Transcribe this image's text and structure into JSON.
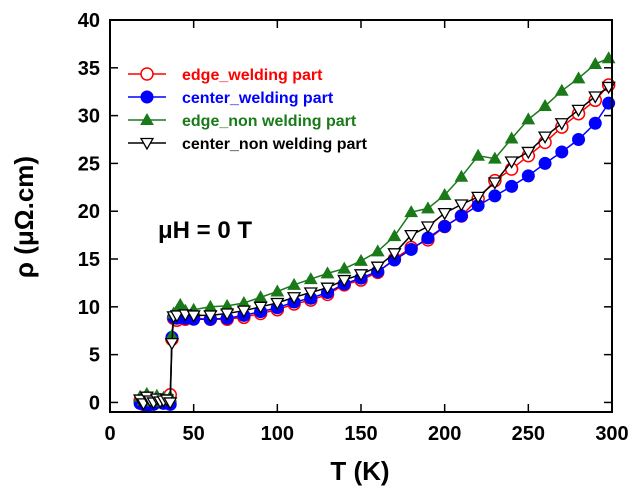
{
  "chart_data": {
    "type": "scatter",
    "xlabel": "T (K)",
    "ylabel": "ρ (μΩ.cm)",
    "annotation": "μH = 0 T",
    "xlim": [
      0,
      300
    ],
    "ylim": [
      -1,
      40
    ],
    "xticks": [
      0,
      50,
      100,
      150,
      200,
      250,
      300
    ],
    "yticks": [
      0,
      5,
      10,
      15,
      20,
      25,
      30,
      35,
      40
    ],
    "legend_position": "upper-left",
    "grid": false,
    "series": [
      {
        "name": "edge_welding part",
        "color": "#ff0000",
        "marker": "circle-open",
        "points": [
          [
            18,
            0.2
          ],
          [
            20,
            -0.2
          ],
          [
            22,
            0.5
          ],
          [
            24,
            0.0
          ],
          [
            26,
            -0.1
          ],
          [
            28,
            0.3
          ],
          [
            30,
            0.1
          ],
          [
            32,
            0.0
          ],
          [
            34,
            0.4
          ],
          [
            36,
            0.8
          ],
          [
            37,
            6.6
          ],
          [
            38,
            8.8
          ],
          [
            40,
            8.6
          ],
          [
            45,
            8.7
          ],
          [
            50,
            8.8
          ],
          [
            60,
            8.7
          ],
          [
            70,
            8.7
          ],
          [
            80,
            8.9
          ],
          [
            90,
            9.3
          ],
          [
            100,
            9.7
          ],
          [
            110,
            10.3
          ],
          [
            120,
            10.7
          ],
          [
            130,
            11.3
          ],
          [
            140,
            12.3
          ],
          [
            150,
            12.8
          ],
          [
            160,
            13.6
          ],
          [
            170,
            15.0
          ],
          [
            180,
            16.2
          ],
          [
            190,
            17.0
          ],
          [
            200,
            18.4
          ],
          [
            210,
            19.5
          ],
          [
            220,
            21.3
          ],
          [
            230,
            23.2
          ],
          [
            240,
            24.4
          ],
          [
            250,
            25.8
          ],
          [
            260,
            27.2
          ],
          [
            270,
            28.8
          ],
          [
            280,
            30.2
          ],
          [
            290,
            31.6
          ],
          [
            298,
            33.2
          ]
        ]
      },
      {
        "name": "center_welding part",
        "color": "#0000ff",
        "marker": "circle-filled",
        "points": [
          [
            18,
            -0.1
          ],
          [
            20,
            0.2
          ],
          [
            22,
            -0.4
          ],
          [
            24,
            0.1
          ],
          [
            26,
            -0.2
          ],
          [
            28,
            0.0
          ],
          [
            30,
            0.3
          ],
          [
            32,
            -0.1
          ],
          [
            34,
            0.1
          ],
          [
            36,
            -0.2
          ],
          [
            37,
            6.8
          ],
          [
            38,
            8.9
          ],
          [
            40,
            8.8
          ],
          [
            45,
            8.8
          ],
          [
            50,
            8.7
          ],
          [
            60,
            8.7
          ],
          [
            70,
            8.8
          ],
          [
            80,
            9.1
          ],
          [
            90,
            9.5
          ],
          [
            100,
            9.9
          ],
          [
            110,
            10.5
          ],
          [
            120,
            10.9
          ],
          [
            130,
            11.5
          ],
          [
            140,
            12.4
          ],
          [
            150,
            13.0
          ],
          [
            160,
            13.7
          ],
          [
            170,
            14.9
          ],
          [
            180,
            16.0
          ],
          [
            190,
            17.2
          ],
          [
            200,
            18.4
          ],
          [
            210,
            19.5
          ],
          [
            220,
            20.6
          ],
          [
            230,
            21.6
          ],
          [
            240,
            22.6
          ],
          [
            250,
            23.7
          ],
          [
            260,
            25.0
          ],
          [
            270,
            26.2
          ],
          [
            280,
            27.5
          ],
          [
            290,
            29.2
          ],
          [
            298,
            31.3
          ]
        ]
      },
      {
        "name": "edge_non welding part",
        "color": "#1a7a1a",
        "marker": "triangle-up-filled",
        "points": [
          [
            18,
            0.6
          ],
          [
            20,
            0.2
          ],
          [
            22,
            0.9
          ],
          [
            24,
            0.4
          ],
          [
            26,
            0.1
          ],
          [
            28,
            0.7
          ],
          [
            30,
            0.3
          ],
          [
            32,
            0.5
          ],
          [
            34,
            0.2
          ],
          [
            36,
            0.6
          ],
          [
            37,
            7.0
          ],
          [
            38,
            9.3
          ],
          [
            40,
            9.6
          ],
          [
            42,
            10.2
          ],
          [
            45,
            9.6
          ],
          [
            50,
            9.7
          ],
          [
            60,
            10.0
          ],
          [
            70,
            10.1
          ],
          [
            80,
            10.4
          ],
          [
            90,
            11.0
          ],
          [
            100,
            11.6
          ],
          [
            110,
            12.3
          ],
          [
            120,
            12.9
          ],
          [
            130,
            13.5
          ],
          [
            140,
            14.0
          ],
          [
            150,
            14.8
          ],
          [
            160,
            15.8
          ],
          [
            170,
            17.4
          ],
          [
            180,
            19.9
          ],
          [
            190,
            20.3
          ],
          [
            200,
            21.7
          ],
          [
            210,
            23.6
          ],
          [
            220,
            25.8
          ],
          [
            230,
            25.5
          ],
          [
            240,
            27.6
          ],
          [
            250,
            29.6
          ],
          [
            260,
            31.0
          ],
          [
            270,
            32.6
          ],
          [
            280,
            33.9
          ],
          [
            290,
            35.4
          ],
          [
            298,
            36.0
          ]
        ]
      },
      {
        "name": "center_non welding part",
        "color": "#000000",
        "marker": "triangle-down-open",
        "points": [
          [
            18,
            0.3
          ],
          [
            20,
            -0.1
          ],
          [
            22,
            0.6
          ],
          [
            24,
            0.2
          ],
          [
            26,
            0.0
          ],
          [
            28,
            0.4
          ],
          [
            30,
            0.1
          ],
          [
            32,
            0.2
          ],
          [
            34,
            0.3
          ],
          [
            36,
            0.0
          ],
          [
            37,
            6.2
          ],
          [
            38,
            9.0
          ],
          [
            40,
            9.1
          ],
          [
            45,
            9.2
          ],
          [
            50,
            9.1
          ],
          [
            60,
            9.1
          ],
          [
            70,
            9.3
          ],
          [
            80,
            9.6
          ],
          [
            90,
            10.0
          ],
          [
            100,
            10.4
          ],
          [
            110,
            11.0
          ],
          [
            120,
            11.5
          ],
          [
            130,
            12.0
          ],
          [
            140,
            12.8
          ],
          [
            150,
            13.4
          ],
          [
            160,
            14.2
          ],
          [
            170,
            15.6
          ],
          [
            180,
            17.5
          ],
          [
            190,
            18.4
          ],
          [
            200,
            19.8
          ],
          [
            210,
            20.7
          ],
          [
            220,
            21.5
          ],
          [
            230,
            23.0
          ],
          [
            240,
            25.2
          ],
          [
            250,
            26.2
          ],
          [
            260,
            27.8
          ],
          [
            270,
            29.2
          ],
          [
            280,
            30.6
          ],
          [
            290,
            32.0
          ],
          [
            298,
            33.0
          ]
        ]
      }
    ]
  }
}
